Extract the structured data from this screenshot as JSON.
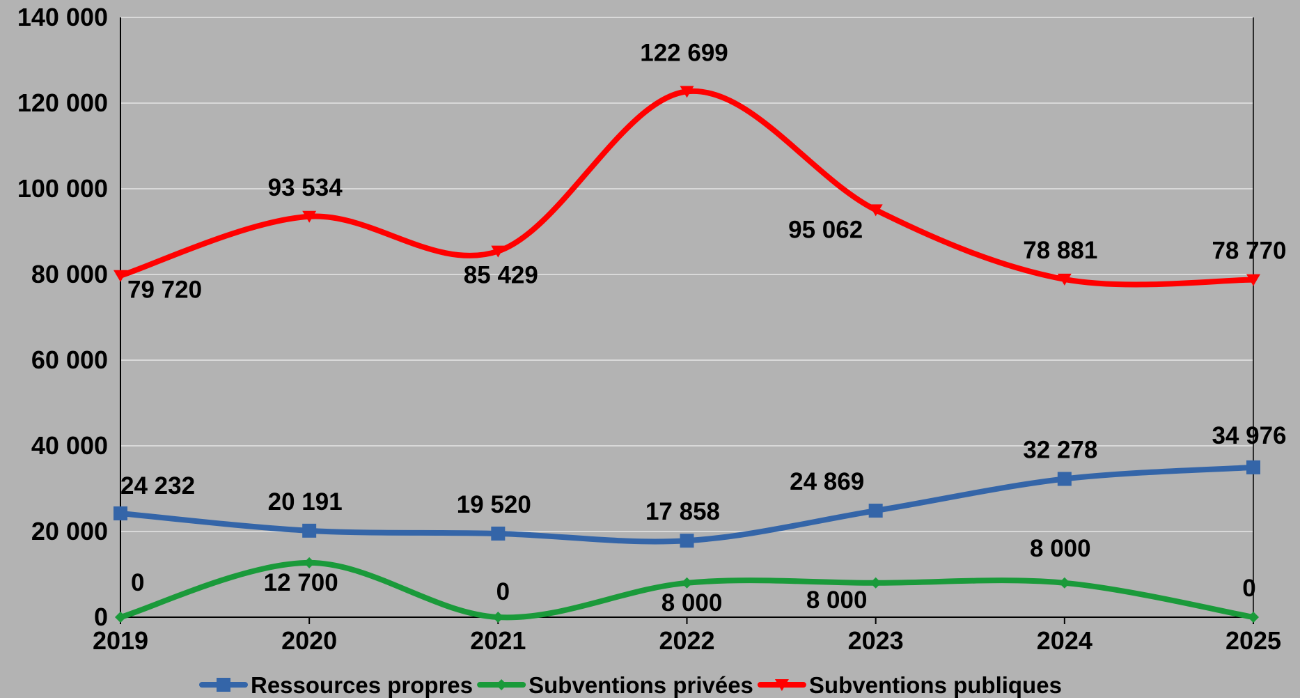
{
  "chart_data": {
    "type": "line",
    "categories": [
      "2019",
      "2020",
      "2021",
      "2022",
      "2023",
      "2024",
      "2025"
    ],
    "ylim": [
      0,
      140000
    ],
    "yticks": [
      0,
      20000,
      40000,
      60000,
      80000,
      100000,
      120000,
      140000
    ],
    "ytick_labels": [
      "0",
      "20 000",
      "40 000",
      "60 000",
      "80 000",
      "100 000",
      "120 000",
      "140 000"
    ],
    "grid": true,
    "legend_position": "bottom",
    "smooth": true,
    "series": [
      {
        "name": "Ressources propres",
        "color": "#3465a8",
        "marker": "square",
        "values": [
          24232,
          20191,
          19520,
          17858,
          24869,
          32278,
          34976
        ],
        "labels": [
          "24 232",
          "20 191",
          "19 520",
          "17 858",
          "24 869",
          "32 278",
          "34 976"
        ]
      },
      {
        "name": "Subventions privées",
        "color": "#1a9a3a",
        "marker": "diamond",
        "values": [
          0,
          12700,
          0,
          8000,
          8000,
          8000,
          0
        ],
        "labels": [
          "0",
          "12 700",
          "0",
          "8 000",
          "8 000",
          "8 000",
          "0"
        ]
      },
      {
        "name": "Subventions publiques",
        "color": "#ff0000",
        "marker": "triangle-down",
        "values": [
          79720,
          93534,
          85429,
          122699,
          95062,
          78881,
          78770
        ],
        "labels": [
          "79 720",
          "93 534",
          "85 429",
          "122 699",
          "95 062",
          "78 881",
          "78 770"
        ]
      }
    ]
  }
}
